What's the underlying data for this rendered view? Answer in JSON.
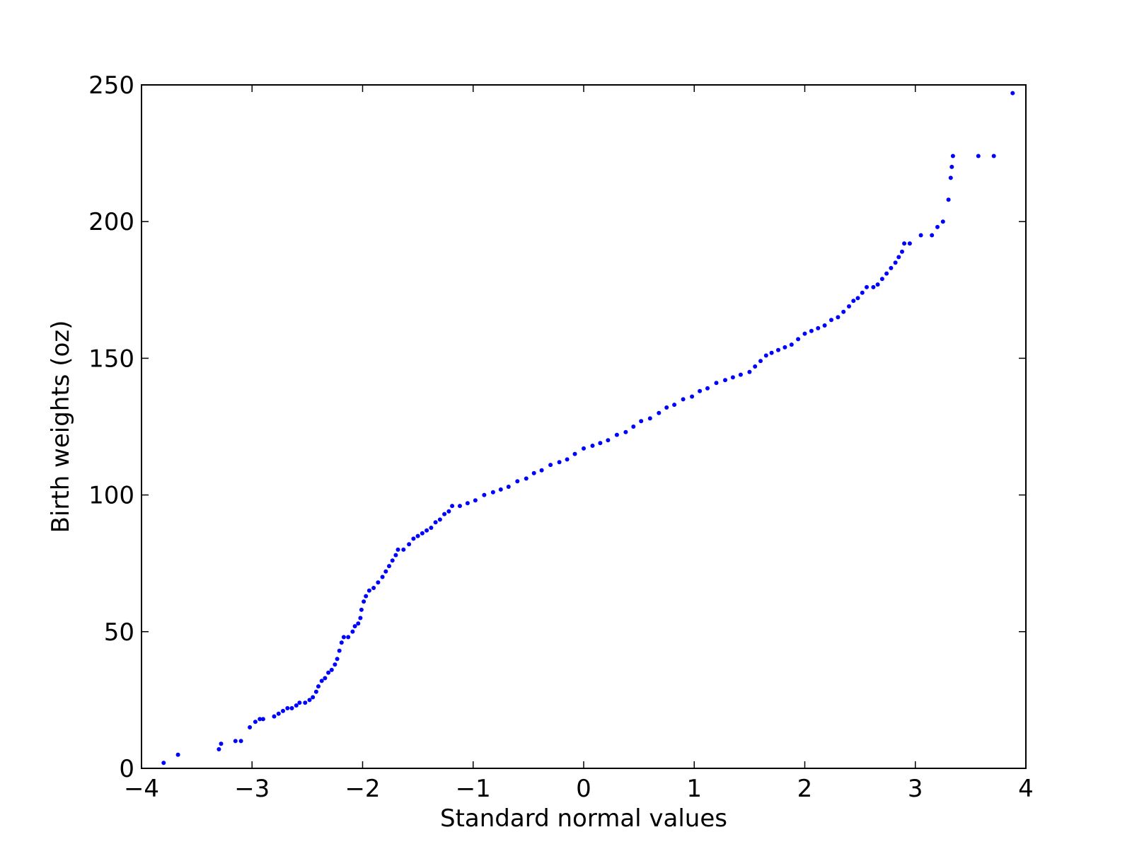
{
  "chart_data": {
    "type": "scatter",
    "title": "",
    "xlabel": "Standard normal values",
    "ylabel": "Birth weights (oz)",
    "xlim": [
      -4,
      4
    ],
    "ylim": [
      0,
      250
    ],
    "xticks": [
      -4,
      -3,
      -2,
      -1,
      0,
      1,
      2,
      3,
      4
    ],
    "xtick_labels": [
      "−4",
      "−3",
      "−2",
      "−1",
      "0",
      "1",
      "2",
      "3",
      "4"
    ],
    "yticks": [
      0,
      50,
      100,
      150,
      200,
      250
    ],
    "ytick_labels": [
      "0",
      "50",
      "100",
      "150",
      "200",
      "250"
    ],
    "grid": false,
    "marker_color": "#0000ff",
    "points": [
      [
        -3.8,
        2
      ],
      [
        -3.67,
        5
      ],
      [
        -3.3,
        7
      ],
      [
        -3.28,
        9
      ],
      [
        -3.15,
        10
      ],
      [
        -3.1,
        10
      ],
      [
        -3.02,
        15
      ],
      [
        -2.97,
        17
      ],
      [
        -2.93,
        18
      ],
      [
        -2.9,
        18
      ],
      [
        -2.8,
        19
      ],
      [
        -2.76,
        20
      ],
      [
        -2.72,
        21
      ],
      [
        -2.68,
        22
      ],
      [
        -2.64,
        22
      ],
      [
        -2.6,
        23
      ],
      [
        -2.57,
        24
      ],
      [
        -2.52,
        24
      ],
      [
        -2.48,
        25
      ],
      [
        -2.45,
        26
      ],
      [
        -2.42,
        28
      ],
      [
        -2.4,
        30
      ],
      [
        -2.37,
        32
      ],
      [
        -2.34,
        33
      ],
      [
        -2.31,
        35
      ],
      [
        -2.28,
        36
      ],
      [
        -2.25,
        38
      ],
      [
        -2.23,
        40
      ],
      [
        -2.21,
        43
      ],
      [
        -2.19,
        46
      ],
      [
        -2.17,
        48
      ],
      [
        -2.13,
        48
      ],
      [
        -2.09,
        50
      ],
      [
        -2.07,
        52
      ],
      [
        -2.04,
        53
      ],
      [
        -2.02,
        55
      ],
      [
        -2.01,
        58
      ],
      [
        -1.99,
        61
      ],
      [
        -1.97,
        63
      ],
      [
        -1.94,
        65
      ],
      [
        -1.9,
        66
      ],
      [
        -1.86,
        68
      ],
      [
        -1.82,
        70
      ],
      [
        -1.79,
        72
      ],
      [
        -1.76,
        74
      ],
      [
        -1.73,
        76
      ],
      [
        -1.7,
        78
      ],
      [
        -1.68,
        80
      ],
      [
        -1.63,
        80
      ],
      [
        -1.58,
        82
      ],
      [
        -1.54,
        84
      ],
      [
        -1.5,
        85
      ],
      [
        -1.46,
        86
      ],
      [
        -1.42,
        87
      ],
      [
        -1.38,
        88
      ],
      [
        -1.34,
        90
      ],
      [
        -1.3,
        91
      ],
      [
        -1.26,
        93
      ],
      [
        -1.22,
        94
      ],
      [
        -1.19,
        96
      ],
      [
        -1.12,
        96
      ],
      [
        -1.05,
        97
      ],
      [
        -0.98,
        98
      ],
      [
        -0.9,
        100
      ],
      [
        -0.82,
        101
      ],
      [
        -0.75,
        102
      ],
      [
        -0.68,
        103
      ],
      [
        -0.6,
        105
      ],
      [
        -0.52,
        106
      ],
      [
        -0.45,
        108
      ],
      [
        -0.38,
        109
      ],
      [
        -0.3,
        111
      ],
      [
        -0.22,
        112
      ],
      [
        -0.15,
        113
      ],
      [
        -0.08,
        115
      ],
      [
        0.0,
        117
      ],
      [
        0.08,
        118
      ],
      [
        0.15,
        119
      ],
      [
        0.22,
        120
      ],
      [
        0.3,
        122
      ],
      [
        0.38,
        123
      ],
      [
        0.45,
        125
      ],
      [
        0.52,
        127
      ],
      [
        0.6,
        128
      ],
      [
        0.68,
        130
      ],
      [
        0.75,
        132
      ],
      [
        0.82,
        133
      ],
      [
        0.9,
        135
      ],
      [
        0.98,
        136
      ],
      [
        1.05,
        138
      ],
      [
        1.12,
        139
      ],
      [
        1.2,
        141
      ],
      [
        1.28,
        142
      ],
      [
        1.35,
        143
      ],
      [
        1.42,
        144
      ],
      [
        1.5,
        145
      ],
      [
        1.55,
        147
      ],
      [
        1.6,
        149
      ],
      [
        1.65,
        151
      ],
      [
        1.7,
        152
      ],
      [
        1.76,
        153
      ],
      [
        1.82,
        154
      ],
      [
        1.88,
        155
      ],
      [
        1.94,
        157
      ],
      [
        2.0,
        159
      ],
      [
        2.06,
        160
      ],
      [
        2.12,
        161
      ],
      [
        2.18,
        162
      ],
      [
        2.24,
        164
      ],
      [
        2.3,
        165
      ],
      [
        2.35,
        167
      ],
      [
        2.4,
        169
      ],
      [
        2.44,
        171
      ],
      [
        2.48,
        172
      ],
      [
        2.52,
        174
      ],
      [
        2.56,
        176
      ],
      [
        2.62,
        176
      ],
      [
        2.66,
        177
      ],
      [
        2.7,
        179
      ],
      [
        2.74,
        181
      ],
      [
        2.78,
        183
      ],
      [
        2.82,
        185
      ],
      [
        2.85,
        187
      ],
      [
        2.88,
        189
      ],
      [
        2.9,
        192
      ],
      [
        2.95,
        192
      ],
      [
        3.05,
        195
      ],
      [
        3.15,
        195
      ],
      [
        3.2,
        198
      ],
      [
        3.25,
        200
      ],
      [
        3.3,
        208
      ],
      [
        3.32,
        216
      ],
      [
        3.33,
        220
      ],
      [
        3.34,
        224
      ],
      [
        3.57,
        224
      ],
      [
        3.71,
        224
      ],
      [
        3.88,
        247
      ]
    ]
  }
}
